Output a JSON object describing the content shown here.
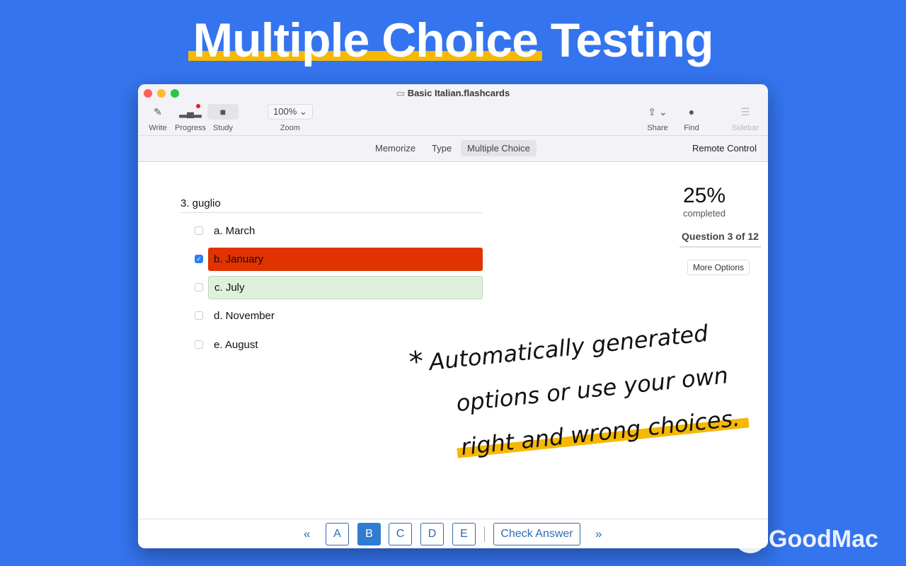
{
  "headline": {
    "part1": "Multiple Choice",
    "part2": " Testing"
  },
  "window": {
    "title": "Basic Italian.flashcards"
  },
  "toolbar": {
    "write": "Write",
    "progress": "Progress",
    "study": "Study",
    "zoom_value": "100%",
    "zoom": "Zoom",
    "share": "Share",
    "find": "Find",
    "sidebar": "Sidebar"
  },
  "modes": {
    "items": [
      "Memorize",
      "Type",
      "Multiple Choice"
    ],
    "active": "Multiple Choice",
    "remote": "Remote Control"
  },
  "question": {
    "text": "3. guglio",
    "options": [
      {
        "label": "a. March",
        "checked": false,
        "state": "none"
      },
      {
        "label": "b. January",
        "checked": true,
        "state": "wrong"
      },
      {
        "label": "c. July",
        "checked": false,
        "state": "correct"
      },
      {
        "label": "d. November",
        "checked": false,
        "state": "none"
      },
      {
        "label": "e. August",
        "checked": false,
        "state": "none"
      }
    ]
  },
  "progress": {
    "percent": "25%",
    "label": "completed",
    "question": "Question 3 of 12",
    "more": "More Options"
  },
  "annotation": {
    "star": "*",
    "line1": "Automatically generated",
    "line2": "options or use your own",
    "line3": "right and wrong choices."
  },
  "bottom": {
    "prev": "«",
    "letters": [
      "A",
      "B",
      "C",
      "D",
      "E"
    ],
    "selected": "B",
    "check": "Check Answer",
    "next": "»"
  },
  "logo": {
    "text": "GoodMac"
  },
  "colors": {
    "background": "#3474ee",
    "highlight": "#f6b800",
    "wrong": "#e03300",
    "correct": "#dff0dc",
    "accent": "#2f6cb0"
  }
}
